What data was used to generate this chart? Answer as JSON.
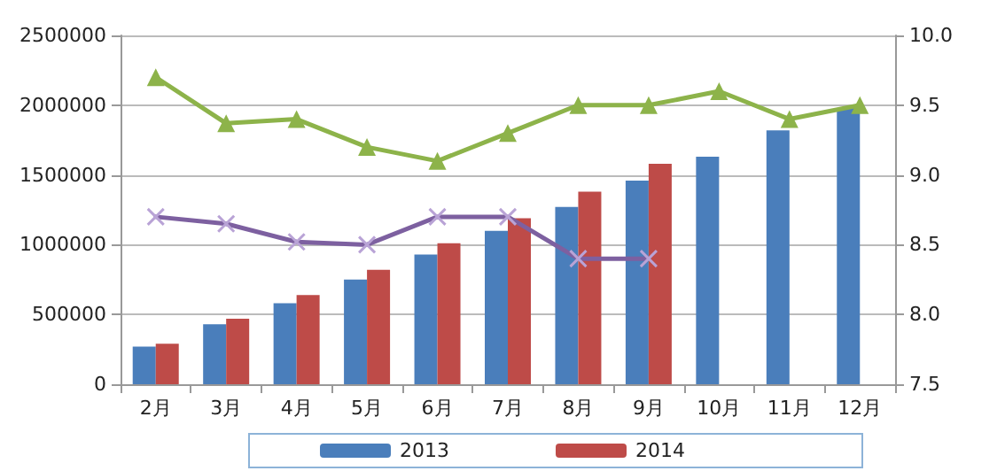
{
  "chart_data": {
    "type": "bar",
    "categories": [
      "2月",
      "3月",
      "4月",
      "5月",
      "6月",
      "7月",
      "8月",
      "9月",
      "10月",
      "11月",
      "12月"
    ],
    "series": [
      {
        "name": "2013",
        "color": "#4a7ebb",
        "values": [
          270000,
          430000,
          580000,
          750000,
          930000,
          1100000,
          1270000,
          1460000,
          1630000,
          1820000,
          1980000
        ]
      },
      {
        "name": "2014",
        "color": "#be4b48",
        "values": [
          290000,
          470000,
          640000,
          820000,
          1010000,
          1190000,
          1380000,
          1580000,
          null,
          null,
          null
        ]
      },
      {
        "type": "line",
        "axis": "y2",
        "marker": "triangle",
        "color": "#8db34a",
        "values": [
          9.7,
          9.37,
          9.4,
          9.2,
          9.1,
          9.3,
          9.5,
          9.5,
          9.6,
          9.4,
          9.5
        ]
      },
      {
        "type": "line",
        "axis": "y2",
        "marker": "cross",
        "color": "#7d60a0",
        "values": [
          8.7,
          8.65,
          8.52,
          8.5,
          8.7,
          8.7,
          8.4,
          8.4,
          null,
          null,
          null
        ]
      }
    ],
    "ylim": [
      0,
      2500000
    ],
    "yticks": [
      0,
      500000,
      1000000,
      1500000,
      2000000,
      2500000
    ],
    "y2lim": [
      7.5,
      10
    ],
    "y2ticks": [
      {
        "value": 7.5,
        "label": "7.5"
      },
      {
        "value": 8,
        "label": "8.0"
      },
      {
        "value": 8.5,
        "label": "8.5"
      },
      {
        "value": 9,
        "label": "9.0"
      },
      {
        "value": 9.5,
        "label": "9.5"
      },
      {
        "value": 10,
        "label": "10.0"
      }
    ],
    "grid": "y",
    "legend": "bottom"
  }
}
